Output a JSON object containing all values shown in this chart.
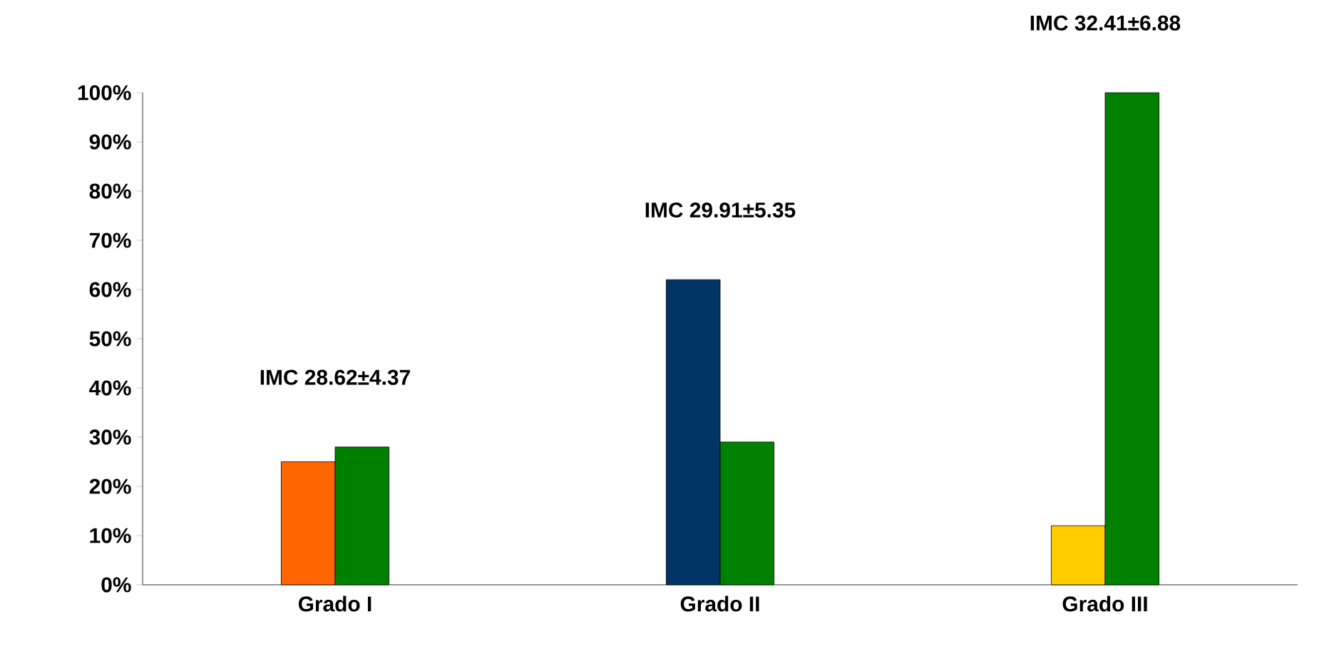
{
  "chart_data": {
    "type": "bar",
    "categories": [
      "Grado I",
      "Grado II",
      "Grado III"
    ],
    "series": [
      {
        "colors": [
          "#ff6600",
          "#003366",
          "#ffcc00"
        ],
        "values": [
          25,
          62,
          12
        ]
      },
      {
        "color": "#008000",
        "values": [
          28,
          29,
          100
        ]
      }
    ],
    "ylim": [
      0,
      100
    ],
    "yticks": [
      {
        "value": 0,
        "label": "0%"
      },
      {
        "value": 10,
        "label": "10%"
      },
      {
        "value": 20,
        "label": "20%"
      },
      {
        "value": 30,
        "label": "30%"
      },
      {
        "value": 40,
        "label": "40%"
      },
      {
        "value": 50,
        "label": "50%"
      },
      {
        "value": 60,
        "label": "60%"
      },
      {
        "value": 70,
        "label": "70%"
      },
      {
        "value": 80,
        "label": "80%"
      },
      {
        "value": 90,
        "label": "90%"
      },
      {
        "value": 100,
        "label": "100%"
      }
    ],
    "annotations": [
      "IMC 28.62±4.37",
      "IMC 29.91±5.35",
      "IMC 32.41±6.88"
    ],
    "grid": false
  }
}
